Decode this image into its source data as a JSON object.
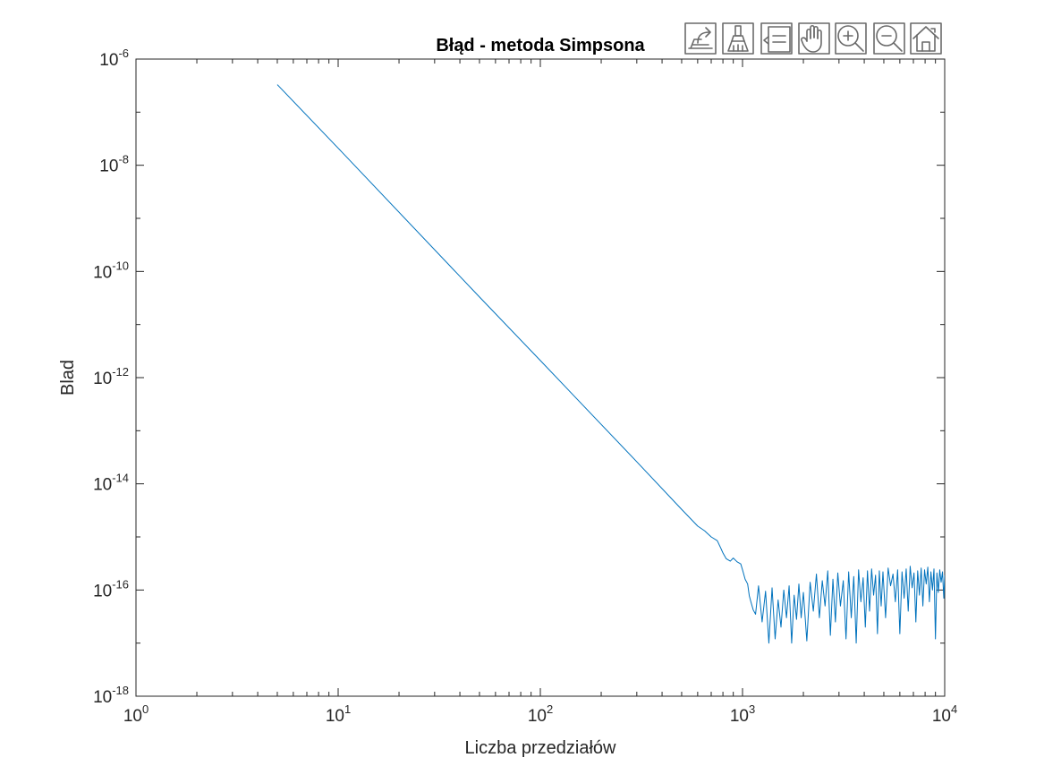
{
  "toolbar": {
    "buttons": [
      {
        "name": "export-icon",
        "label": "Export"
      },
      {
        "name": "brush-icon",
        "label": "Brush"
      },
      {
        "name": "datatip-icon",
        "label": "Data Tips"
      },
      {
        "name": "pan-hand-icon",
        "label": "Pan"
      },
      {
        "name": "zoom-in-icon",
        "label": "Zoom In"
      },
      {
        "name": "zoom-out-icon",
        "label": "Zoom Out"
      },
      {
        "name": "home-icon",
        "label": "Restore View"
      }
    ]
  },
  "chart_data": {
    "type": "line",
    "title": "Błąd - metoda Simpsona",
    "xlabel": "Liczba przedziałów",
    "ylabel": "Blad",
    "xscale": "log",
    "yscale": "log",
    "xlim": [
      1,
      10000
    ],
    "ylim": [
      1e-18,
      1e-06
    ],
    "grid": false,
    "x_ticks": [
      {
        "value": 1,
        "base": "10",
        "exp": "0"
      },
      {
        "value": 10,
        "base": "10",
        "exp": "1"
      },
      {
        "value": 100,
        "base": "10",
        "exp": "2"
      },
      {
        "value": 1000,
        "base": "10",
        "exp": "3"
      },
      {
        "value": 10000,
        "base": "10",
        "exp": "4"
      }
    ],
    "y_ticks": [
      {
        "value": 1e-18,
        "base": "10",
        "exp": "-18"
      },
      {
        "value": 1e-16,
        "base": "10",
        "exp": "-16"
      },
      {
        "value": 1e-14,
        "base": "10",
        "exp": "-14"
      },
      {
        "value": 1e-12,
        "base": "10",
        "exp": "-12"
      },
      {
        "value": 1e-10,
        "base": "10",
        "exp": "-10"
      },
      {
        "value": 1e-08,
        "base": "10",
        "exp": "-8"
      },
      {
        "value": 1e-06,
        "base": "10",
        "exp": "-6"
      }
    ],
    "line_color": "#0072BD",
    "series": [
      {
        "x": [
          5,
          10,
          50,
          100,
          300,
          500,
          600,
          650,
          700,
          750,
          780,
          800,
          830,
          870,
          900,
          940,
          980,
          1000,
          1030,
          1060,
          1080,
          1100,
          1130,
          1160,
          1200,
          1250,
          1300,
          1350,
          1400,
          1450,
          1500,
          1550,
          1600,
          1650,
          1700,
          1750,
          1800,
          1850,
          1900,
          1950,
          2000,
          2080,
          2160,
          2240,
          2320,
          2400,
          2480,
          2560,
          2640,
          2720,
          2800,
          2880,
          2960,
          3050,
          3150,
          3250,
          3350,
          3450,
          3550,
          3650,
          3750,
          3850,
          3950,
          4050,
          4150,
          4250,
          4350,
          4450,
          4550,
          4650,
          4750,
          4850,
          4950,
          5100,
          5250,
          5400,
          5550,
          5700,
          5850,
          6000,
          6150,
          6300,
          6450,
          6600,
          6750,
          6900,
          7050,
          7200,
          7350,
          7500,
          7650,
          7800,
          7950,
          8100,
          8250,
          8400,
          8550,
          8700,
          8850,
          9000,
          9150,
          9300,
          9450,
          9600,
          9750,
          9900,
          10000
        ],
        "y": [
          3.3e-07,
          2.1e-08,
          3.3e-11,
          2.1e-12,
          2.6e-14,
          3.3e-15,
          1.6e-15,
          1.3e-15,
          1e-15,
          8.5e-16,
          6.2e-16,
          5e-16,
          3.9e-16,
          3.5e-16,
          4e-16,
          3.4e-16,
          3.1e-16,
          2.4e-16,
          1.6e-16,
          1.3e-16,
          7.8e-17,
          6e-17,
          4.2e-17,
          3.5e-17,
          1.2e-16,
          2.5e-17,
          9.5e-17,
          1e-17,
          1.1e-16,
          1.2e-17,
          6.5e-17,
          2e-17,
          1e-16,
          3e-17,
          1.2e-16,
          1e-17,
          8e-17,
          2.8e-17,
          1.3e-16,
          3e-17,
          9e-17,
          1.1e-17,
          1.4e-16,
          4e-17,
          2e-16,
          3e-17,
          1.5e-16,
          5e-17,
          2.3e-16,
          1.4e-17,
          1.6e-16,
          2.5e-17,
          2.1e-16,
          5e-17,
          1.5e-16,
          1.2e-17,
          2.2e-16,
          3e-17,
          1.8e-16,
          1e-17,
          2.4e-16,
          6e-17,
          1.7e-16,
          2e-17,
          2.3e-16,
          4e-17,
          2.5e-16,
          8e-17,
          1.9e-16,
          1.5e-17,
          2.3e-16,
          5e-17,
          2.2e-16,
          3e-17,
          2.6e-16,
          1.2e-16,
          2e-16,
          6e-17,
          2.4e-16,
          1.5e-17,
          2.2e-16,
          7e-17,
          2.5e-16,
          4e-17,
          2.8e-16,
          1.1e-16,
          2.1e-16,
          2.5e-17,
          2.3e-16,
          8e-17,
          2.6e-16,
          5e-17,
          2.4e-16,
          1.3e-16,
          2.7e-16,
          6e-17,
          2.2e-16,
          1e-16,
          2.5e-16,
          1.2e-17,
          2.1e-16,
          9e-17,
          2.4e-16,
          1.4e-16,
          2.2e-16,
          7e-17,
          1.9e-16
        ]
      }
    ]
  }
}
